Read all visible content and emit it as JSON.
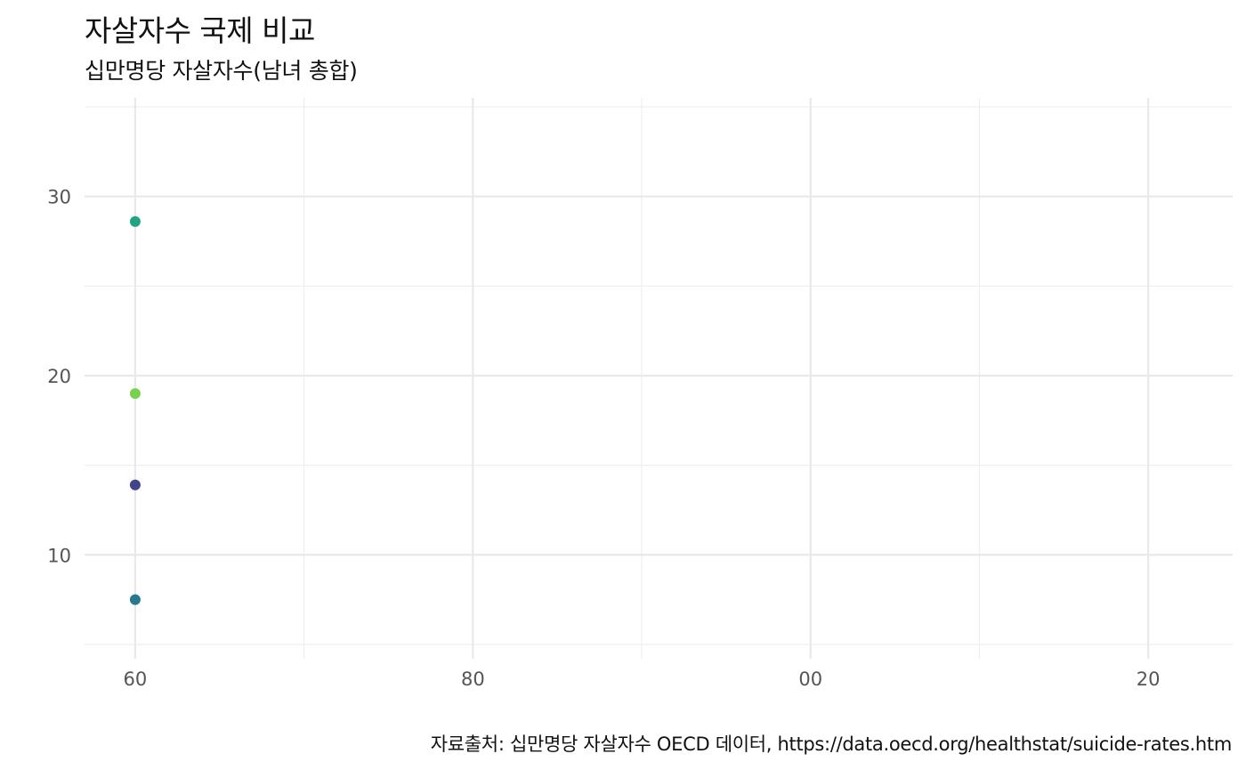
{
  "chart_data": {
    "type": "scatter",
    "title": "자살자수 국제 비교",
    "subtitle": "십만명당 자살자수(남녀 총합)",
    "caption": "자료출처: 십만명당 자살자수 OECD 데이터, https://data.oecd.org/healthstat/suicide-rates.htm",
    "xlabel": "",
    "ylabel": "",
    "x_ticks": [
      {
        "value": 1960,
        "label": "60"
      },
      {
        "value": 1980,
        "label": "80"
      },
      {
        "value": 2000,
        "label": "00"
      },
      {
        "value": 2020,
        "label": "20"
      }
    ],
    "y_ticks": [
      {
        "value": 10,
        "label": "10"
      },
      {
        "value": 20,
        "label": "20"
      },
      {
        "value": 30,
        "label": "30"
      }
    ],
    "xlim": [
      1957,
      2025
    ],
    "ylim": [
      4.2,
      35.5
    ],
    "grid": true,
    "legend": "none",
    "points": [
      {
        "x": 1960,
        "y": 28.6,
        "color": "#22A384"
      },
      {
        "x": 1960,
        "y": 19.0,
        "color": "#7AD151"
      },
      {
        "x": 1960,
        "y": 13.9,
        "color": "#414487"
      },
      {
        "x": 1960,
        "y": 7.5,
        "color": "#2A788E"
      }
    ]
  }
}
